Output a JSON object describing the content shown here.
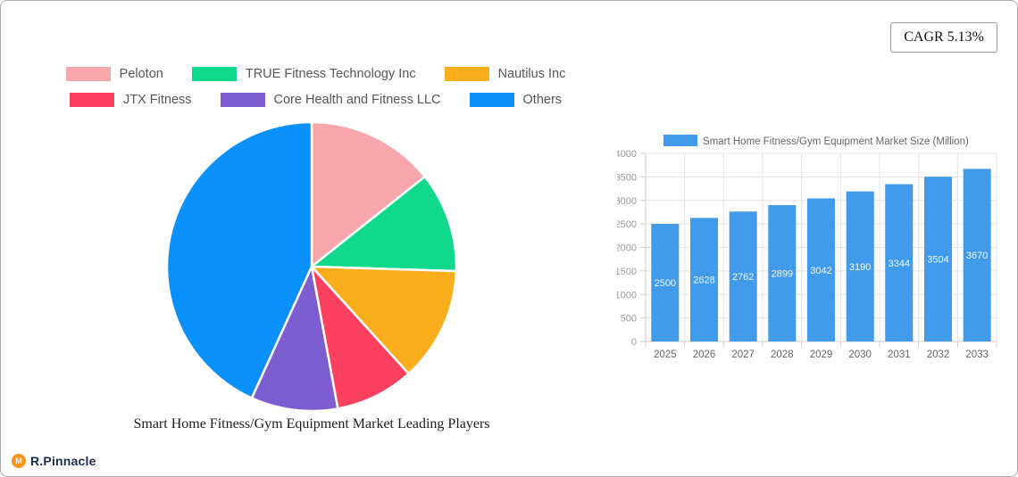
{
  "cagr_badge": {
    "label": "CAGR 5.13%"
  },
  "branding": {
    "name": "R.Pinnacle",
    "monogram": "M",
    "circle_color": "#F7941E",
    "text_color": "#1C2B4A"
  },
  "chart_data": [
    {
      "type": "pie",
      "title": "Smart Home Fitness/Gym Equipment Market Leading Players",
      "labels": [
        "Peloton",
        "TRUE Fitness Technology Inc",
        "Nautilus Inc",
        "JTX Fitness",
        "Core Health and Fitness LLC",
        "Others"
      ],
      "values_percent": [
        14.3,
        11.2,
        12.8,
        8.8,
        9.7,
        43.2
      ],
      "colors": [
        "#F7A6AB",
        "#10D98C",
        "#FBAE1C",
        "#FC4060",
        "#7C5ED1",
        "#0990FA"
      ],
      "legend_position": "top",
      "legend_rows": [
        [
          0,
          1,
          2
        ],
        [
          3,
          4,
          5
        ]
      ],
      "start_angle_deg": 0,
      "direction": "clockwise"
    },
    {
      "type": "bar",
      "legend_label": "Smart Home Fitness/Gym Equipment Market Size (Million)",
      "categories": [
        "2025",
        "2026",
        "2027",
        "2028",
        "2029",
        "2030",
        "2031",
        "2032",
        "2033"
      ],
      "values": [
        2500,
        2628,
        2762,
        2899,
        3042,
        3190,
        3344,
        3504,
        3670
      ],
      "bar_color": "#419BEA",
      "value_label_color": "#F2F8FE",
      "ylim": [
        0,
        4000
      ],
      "ytick_step": 500,
      "grid": true,
      "axis_color": "#CCCCCC",
      "grid_color": "#E4E4E4",
      "ytick_label_color": "#999999",
      "xtick_label_color": "#666666",
      "legend_text_color": "#666666"
    }
  ]
}
